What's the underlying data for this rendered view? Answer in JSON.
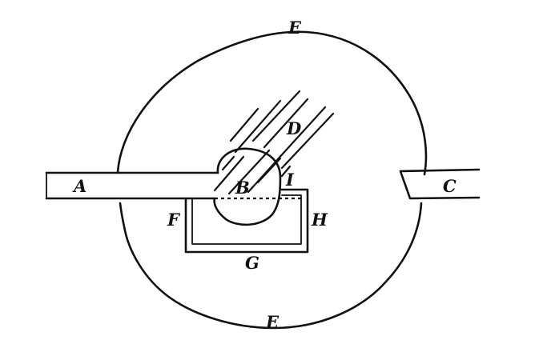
{
  "labels": {
    "a": "A",
    "b": "B",
    "c": "C",
    "d": "D",
    "e_top": "E",
    "e_bottom": "E",
    "f": "F",
    "g": "G",
    "h": "H",
    "i": "I"
  }
}
